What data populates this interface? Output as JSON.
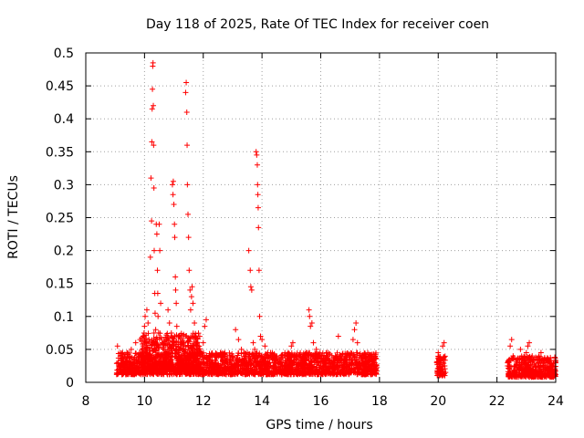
{
  "chart_data": {
    "type": "scatter",
    "title": "Day 118 of 2025, Rate Of TEC Index for receiver coen",
    "xlabel": "GPS time / hours",
    "ylabel": "ROTI / TECUs",
    "xlim": [
      8,
      24
    ],
    "ylim": [
      0,
      0.5
    ],
    "xticks": [
      8,
      10,
      12,
      14,
      16,
      18,
      20,
      22,
      24
    ],
    "xtick_labels": [
      "8",
      "10",
      "12",
      "14",
      "16",
      "18",
      "20",
      "22",
      "24"
    ],
    "yticks": [
      0,
      0.05,
      0.1,
      0.15,
      0.2,
      0.25,
      0.3,
      0.35,
      0.4,
      0.45,
      0.5
    ],
    "ytick_labels": [
      "0",
      "0.05",
      "0.1",
      "0.15",
      "0.2",
      "0.25",
      "0.3",
      "0.35",
      "0.4",
      "0.45",
      "0.5"
    ],
    "grid": true,
    "marker": "+",
    "color": "#ff0000",
    "points": [
      [
        9.08,
        0.055
      ],
      [
        9.1,
        0.03
      ],
      [
        9.12,
        0.02
      ],
      [
        9.15,
        0.025
      ],
      [
        9.18,
        0.04
      ],
      [
        9.2,
        0.018
      ],
      [
        9.25,
        0.035
      ],
      [
        9.3,
        0.022
      ],
      [
        9.35,
        0.028
      ],
      [
        9.4,
        0.045
      ],
      [
        9.45,
        0.02
      ],
      [
        9.5,
        0.03
      ],
      [
        9.55,
        0.05
      ],
      [
        9.6,
        0.025
      ],
      [
        9.65,
        0.035
      ],
      [
        9.7,
        0.06
      ],
      [
        9.75,
        0.028
      ],
      [
        9.8,
        0.04
      ],
      [
        9.85,
        0.065
      ],
      [
        9.9,
        0.03
      ],
      [
        9.95,
        0.07
      ],
      [
        10.0,
        0.085
      ],
      [
        10.02,
        0.1
      ],
      [
        10.05,
        0.06
      ],
      [
        10.08,
        0.11
      ],
      [
        10.1,
        0.045
      ],
      [
        10.12,
        0.09
      ],
      [
        10.15,
        0.04
      ],
      [
        10.2,
        0.19
      ],
      [
        10.22,
        0.31
      ],
      [
        10.24,
        0.245
      ],
      [
        10.25,
        0.365
      ],
      [
        10.26,
        0.415
      ],
      [
        10.27,
        0.445
      ],
      [
        10.28,
        0.48
      ],
      [
        10.29,
        0.485
      ],
      [
        10.3,
        0.42
      ],
      [
        10.31,
        0.36
      ],
      [
        10.32,
        0.295
      ],
      [
        10.33,
        0.2
      ],
      [
        10.35,
        0.135
      ],
      [
        10.36,
        0.105
      ],
      [
        10.38,
        0.08
      ],
      [
        10.4,
        0.24
      ],
      [
        10.42,
        0.225
      ],
      [
        10.44,
        0.17
      ],
      [
        10.45,
        0.135
      ],
      [
        10.46,
        0.1
      ],
      [
        10.48,
        0.075
      ],
      [
        10.5,
        0.24
      ],
      [
        10.52,
        0.2
      ],
      [
        10.55,
        0.12
      ],
      [
        10.6,
        0.06
      ],
      [
        10.65,
        0.05
      ],
      [
        10.7,
        0.04
      ],
      [
        10.75,
        0.065
      ],
      [
        10.8,
        0.11
      ],
      [
        10.85,
        0.09
      ],
      [
        10.95,
        0.3
      ],
      [
        10.97,
        0.285
      ],
      [
        10.98,
        0.305
      ],
      [
        11.0,
        0.27
      ],
      [
        11.02,
        0.24
      ],
      [
        11.03,
        0.22
      ],
      [
        11.05,
        0.16
      ],
      [
        11.06,
        0.14
      ],
      [
        11.08,
        0.12
      ],
      [
        11.1,
        0.085
      ],
      [
        11.15,
        0.07
      ],
      [
        11.2,
        0.05
      ],
      [
        11.3,
        0.04
      ],
      [
        11.4,
        0.44
      ],
      [
        11.42,
        0.455
      ],
      [
        11.44,
        0.41
      ],
      [
        11.45,
        0.36
      ],
      [
        11.46,
        0.3
      ],
      [
        11.48,
        0.255
      ],
      [
        11.5,
        0.22
      ],
      [
        11.52,
        0.17
      ],
      [
        11.55,
        0.14
      ],
      [
        11.57,
        0.11
      ],
      [
        11.6,
        0.13
      ],
      [
        11.62,
        0.145
      ],
      [
        11.65,
        0.12
      ],
      [
        11.7,
        0.09
      ],
      [
        11.75,
        0.07
      ],
      [
        11.8,
        0.05
      ],
      [
        11.9,
        0.045
      ],
      [
        12.0,
        0.06
      ],
      [
        12.05,
        0.085
      ],
      [
        12.1,
        0.095
      ],
      [
        12.2,
        0.04
      ],
      [
        12.3,
        0.03
      ],
      [
        12.5,
        0.025
      ],
      [
        12.7,
        0.02
      ],
      [
        12.9,
        0.03
      ],
      [
        13.1,
        0.08
      ],
      [
        13.2,
        0.065
      ],
      [
        13.3,
        0.05
      ],
      [
        13.4,
        0.035
      ],
      [
        13.5,
        0.045
      ],
      [
        13.55,
        0.2
      ],
      [
        13.6,
        0.17
      ],
      [
        13.62,
        0.145
      ],
      [
        13.65,
        0.14
      ],
      [
        13.7,
        0.06
      ],
      [
        13.75,
        0.05
      ],
      [
        13.8,
        0.35
      ],
      [
        13.82,
        0.345
      ],
      [
        13.84,
        0.33
      ],
      [
        13.85,
        0.3
      ],
      [
        13.86,
        0.285
      ],
      [
        13.87,
        0.265
      ],
      [
        13.88,
        0.235
      ],
      [
        13.9,
        0.17
      ],
      [
        13.92,
        0.1
      ],
      [
        13.95,
        0.07
      ],
      [
        14.0,
        0.065
      ],
      [
        14.1,
        0.055
      ],
      [
        14.2,
        0.045
      ],
      [
        14.3,
        0.04
      ],
      [
        14.4,
        0.035
      ],
      [
        14.5,
        0.04
      ],
      [
        14.6,
        0.03
      ],
      [
        14.7,
        0.025
      ],
      [
        14.8,
        0.03
      ],
      [
        14.9,
        0.045
      ],
      [
        15.0,
        0.055
      ],
      [
        15.05,
        0.06
      ],
      [
        15.1,
        0.03
      ],
      [
        15.2,
        0.02
      ],
      [
        15.3,
        0.025
      ],
      [
        15.4,
        0.03
      ],
      [
        15.5,
        0.04
      ],
      [
        15.6,
        0.11
      ],
      [
        15.62,
        0.1
      ],
      [
        15.65,
        0.085
      ],
      [
        15.7,
        0.09
      ],
      [
        15.75,
        0.06
      ],
      [
        15.8,
        0.04
      ],
      [
        15.85,
        0.05
      ],
      [
        15.9,
        0.03
      ],
      [
        16.0,
        0.025
      ],
      [
        16.1,
        0.035
      ],
      [
        16.2,
        0.045
      ],
      [
        16.3,
        0.03
      ],
      [
        16.4,
        0.02
      ],
      [
        16.5,
        0.04
      ],
      [
        16.6,
        0.07
      ],
      [
        16.7,
        0.03
      ],
      [
        16.8,
        0.025
      ],
      [
        16.9,
        0.035
      ],
      [
        17.0,
        0.04
      ],
      [
        17.1,
        0.065
      ],
      [
        17.15,
        0.08
      ],
      [
        17.2,
        0.09
      ],
      [
        17.25,
        0.06
      ],
      [
        17.3,
        0.035
      ],
      [
        17.4,
        0.03
      ],
      [
        17.5,
        0.025
      ],
      [
        17.6,
        0.03
      ],
      [
        17.7,
        0.025
      ],
      [
        17.8,
        0.02
      ],
      [
        17.85,
        0.018
      ],
      [
        19.95,
        0.03
      ],
      [
        20.0,
        0.045
      ],
      [
        20.05,
        0.02
      ],
      [
        20.1,
        0.035
      ],
      [
        20.15,
        0.055
      ],
      [
        20.2,
        0.06
      ],
      [
        20.22,
        0.025
      ],
      [
        20.25,
        0.015
      ],
      [
        22.4,
        0.03
      ],
      [
        22.45,
        0.055
      ],
      [
        22.5,
        0.065
      ],
      [
        22.55,
        0.04
      ],
      [
        22.6,
        0.025
      ],
      [
        22.7,
        0.035
      ],
      [
        22.8,
        0.05
      ],
      [
        22.85,
        0.03
      ],
      [
        22.9,
        0.02
      ],
      [
        23.0,
        0.045
      ],
      [
        23.05,
        0.055
      ],
      [
        23.1,
        0.06
      ],
      [
        23.15,
        0.035
      ],
      [
        23.2,
        0.04
      ],
      [
        23.3,
        0.025
      ],
      [
        23.4,
        0.03
      ],
      [
        23.5,
        0.045
      ],
      [
        23.6,
        0.035
      ],
      [
        23.7,
        0.02
      ],
      [
        23.8,
        0.03
      ],
      [
        23.9,
        0.025
      ],
      [
        23.95,
        0.015
      ]
    ],
    "dense_bands": [
      {
        "x_start": 9.05,
        "x_end": 17.9,
        "count": 2200,
        "y_min": 0.012,
        "y_max": 0.045,
        "seed": 11
      },
      {
        "x_start": 9.9,
        "x_end": 11.9,
        "count": 500,
        "y_min": 0.02,
        "y_max": 0.075,
        "seed": 23
      },
      {
        "x_start": 19.95,
        "x_end": 20.25,
        "count": 70,
        "y_min": 0.01,
        "y_max": 0.04,
        "seed": 37
      },
      {
        "x_start": 22.35,
        "x_end": 24.0,
        "count": 420,
        "y_min": 0.008,
        "y_max": 0.04,
        "seed": 51
      }
    ]
  }
}
